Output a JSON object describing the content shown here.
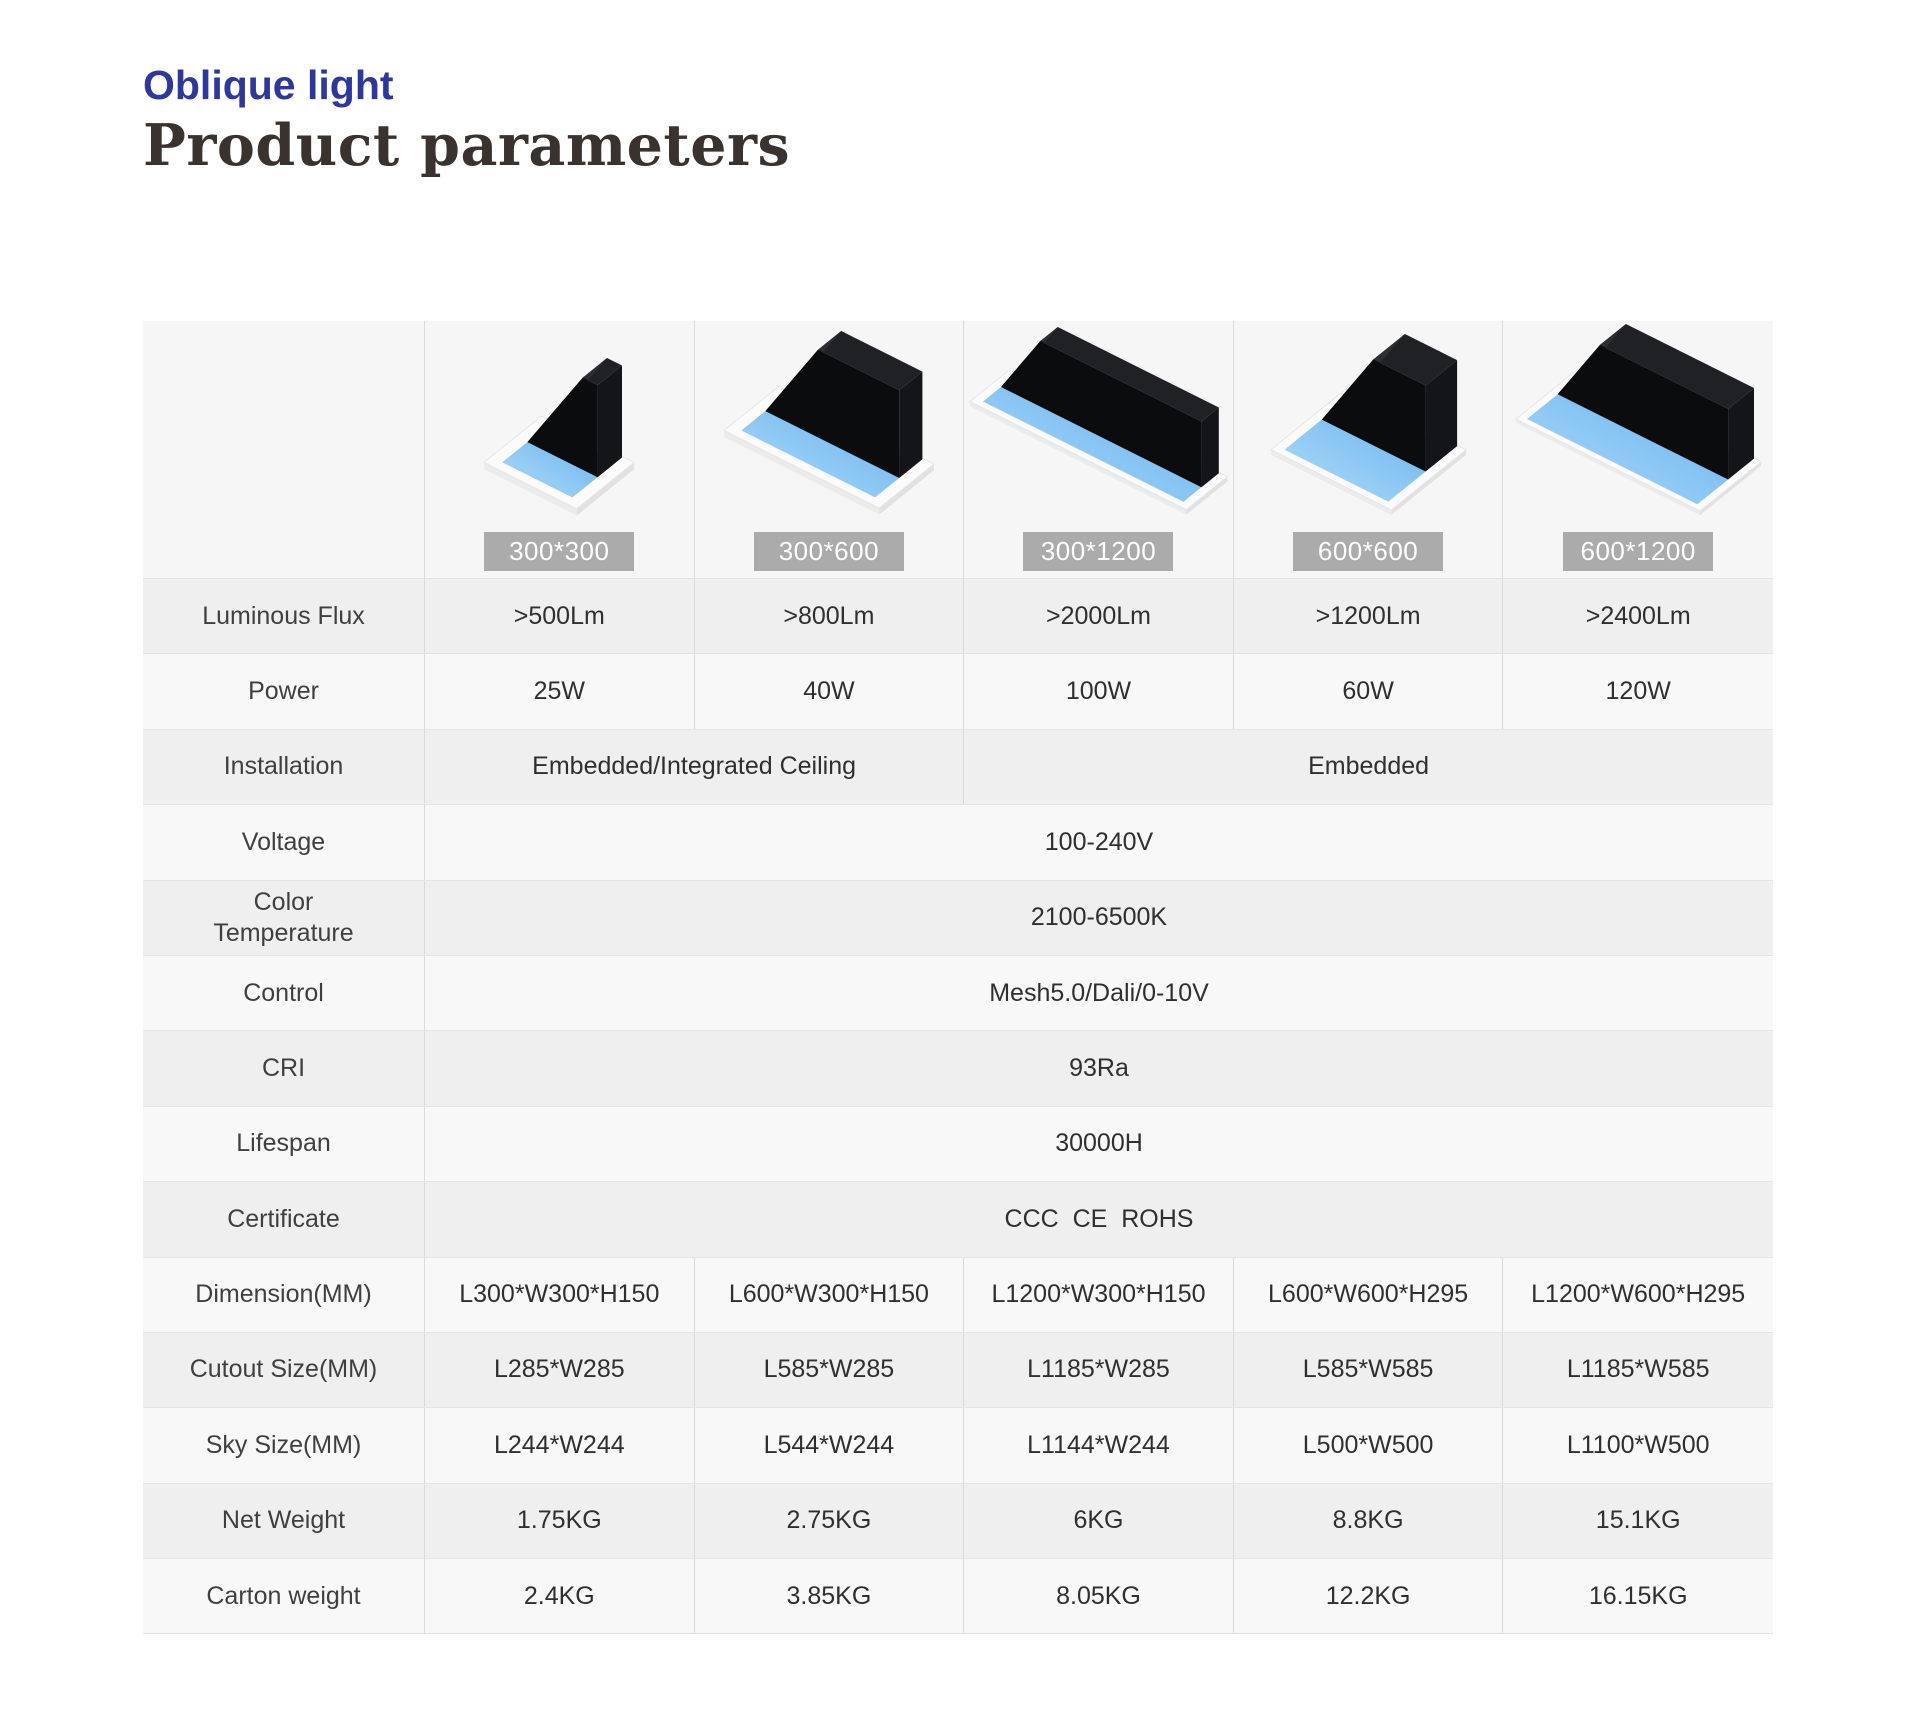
{
  "page": {
    "eyebrow": "Oblique light",
    "title": "Product parameters"
  },
  "colors": {
    "eyebrow_blue": "#2e379e",
    "title_dark": "#39322f",
    "badge_bg": "#ababab",
    "badge_text": "#ffffff",
    "row_dark": "#efeff0",
    "row_light": "#f8f8f9",
    "image_row_bg": "#f6f6f7",
    "sky_blue": "#7fc0f2",
    "housing_black": "#17181b"
  },
  "products": [
    {
      "size_label": "300*300",
      "width_mm": 300,
      "length_mm": 300,
      "height_mm": 150
    },
    {
      "size_label": "300*600",
      "width_mm": 300,
      "length_mm": 600,
      "height_mm": 150
    },
    {
      "size_label": "300*1200",
      "width_mm": 300,
      "length_mm": 1200,
      "height_mm": 150
    },
    {
      "size_label": "600*600",
      "width_mm": 600,
      "length_mm": 600,
      "height_mm": 295
    },
    {
      "size_label": "600*1200",
      "width_mm": 600,
      "length_mm": 1200,
      "height_mm": 295
    }
  ],
  "table": {
    "rows": [
      {
        "label": "Luminous Flux",
        "values": [
          ">500Lm",
          ">800Lm",
          ">2000Lm",
          ">1200Lm",
          ">2400Lm"
        ]
      },
      {
        "label": "Power",
        "values": [
          "25W",
          "40W",
          "100W",
          "60W",
          "120W"
        ]
      },
      {
        "label": "Installation",
        "spans": [
          {
            "cols": 2,
            "value": "Embedded/Integrated Ceiling"
          },
          {
            "cols": 3,
            "value": "Embedded"
          }
        ]
      },
      {
        "label": "Voltage",
        "value": "100-240V"
      },
      {
        "label": "Color\nTemperature",
        "value": "2100-6500K"
      },
      {
        "label": "Control",
        "value": "Mesh5.0/Dali/0-10V"
      },
      {
        "label": "CRI",
        "value": "93Ra"
      },
      {
        "label": "Lifespan",
        "value": "30000H"
      },
      {
        "label": "Certificate",
        "value": "CCC  CE  ROHS"
      },
      {
        "label": "Dimension(MM)",
        "values": [
          "L300*W300*H150",
          "L600*W300*H150",
          "L1200*W300*H150",
          "L600*W600*H295",
          "L1200*W600*H295"
        ]
      },
      {
        "label": "Cutout Size(MM)",
        "values": [
          "L285*W285",
          "L585*W285",
          "L1185*W285",
          "L585*W585",
          "L1185*W585"
        ]
      },
      {
        "label": "Sky Size(MM)",
        "values": [
          "L244*W244",
          "L544*W244",
          "L1144*W244",
          "L500*W500",
          "L1100*W500"
        ]
      },
      {
        "label": "Net Weight",
        "values": [
          "1.75KG",
          "2.75KG",
          "6KG",
          "8.8KG",
          "15.1KG"
        ]
      },
      {
        "label": "Carton weight",
        "values": [
          "2.4KG",
          "3.85KG",
          "8.05KG",
          "12.2KG",
          "16.15KG"
        ]
      }
    ]
  }
}
